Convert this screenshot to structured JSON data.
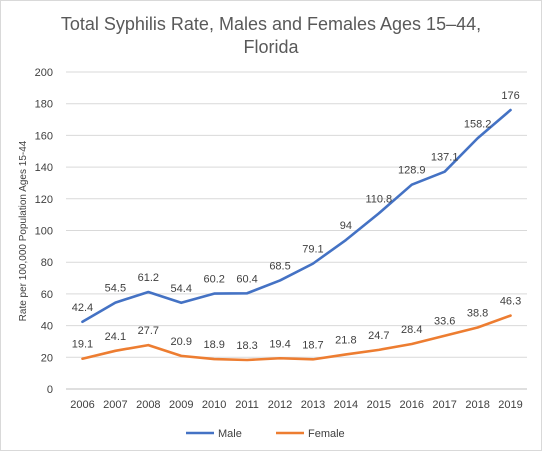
{
  "chart_data": {
    "type": "line",
    "title_lines": [
      "Total Syphilis Rate, Males and Females Ages 15–44,",
      "Florida"
    ],
    "xlabel": "",
    "ylabel": "Rate per 100,000 Population Ages 15-44",
    "ylim": [
      0,
      200
    ],
    "y_ticks": [
      "0",
      "20",
      "40",
      "60",
      "80",
      "100",
      "120",
      "140",
      "160",
      "180",
      "200"
    ],
    "categories": [
      "2006",
      "2007",
      "2008",
      "2009",
      "2010",
      "2011",
      "2012",
      "2013",
      "2014",
      "2015",
      "2016",
      "2017",
      "2018",
      "2019"
    ],
    "series": [
      {
        "name": "Male",
        "color": "#4472c4",
        "values": [
          42.4,
          54.5,
          61.2,
          54.4,
          60.2,
          60.4,
          68.5,
          79.1,
          94,
          110.8,
          128.9,
          137.1,
          158.2,
          176
        ],
        "labels": [
          "42.4",
          "54.5",
          "61.2",
          "54.4",
          "60.2",
          "60.4",
          "68.5",
          "79.1",
          "94",
          "110.8",
          "128.9",
          "137.1",
          "158.2",
          "176"
        ]
      },
      {
        "name": "Female",
        "color": "#ed7d31",
        "values": [
          19.1,
          24.1,
          27.7,
          20.9,
          18.9,
          18.3,
          19.4,
          18.7,
          21.8,
          24.7,
          28.4,
          33.6,
          38.8,
          46.3
        ],
        "labels": [
          "19.1",
          "24.1",
          "27.7",
          "20.9",
          "18.9",
          "18.3",
          "19.4",
          "18.7",
          "21.8",
          "24.7",
          "28.4",
          "33.6",
          "38.8",
          "46.3"
        ]
      }
    ],
    "grid": "horizontal",
    "legend_position": "bottom"
  }
}
